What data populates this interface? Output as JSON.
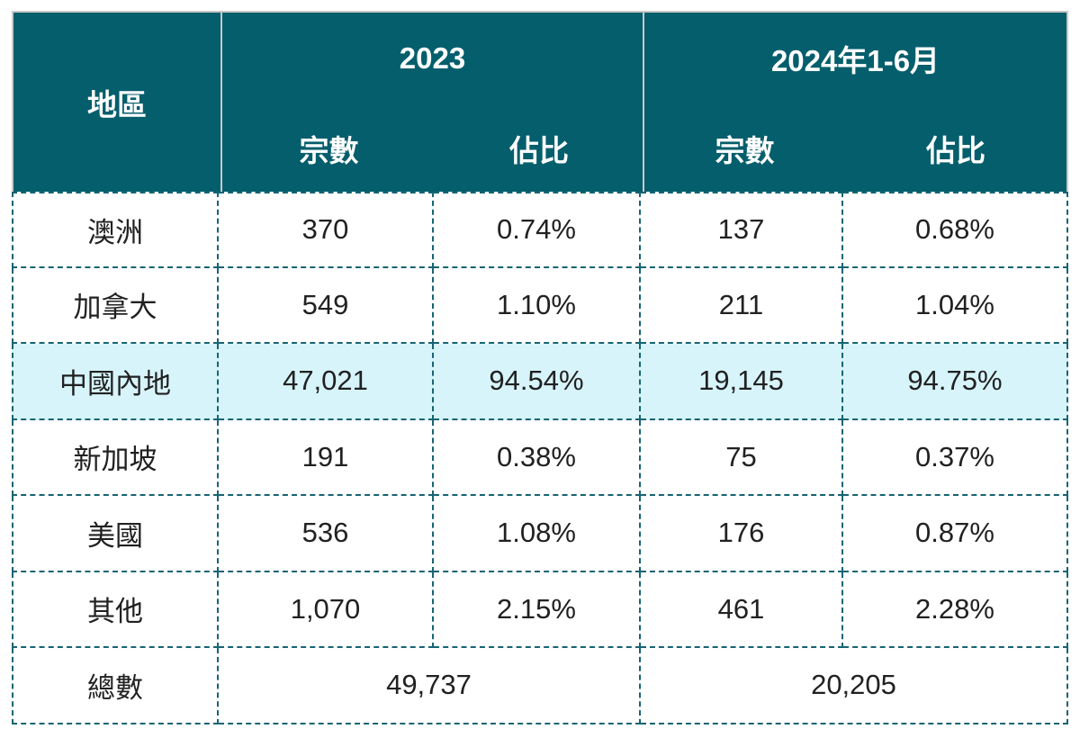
{
  "colors": {
    "header_bg": "#055e6c",
    "header_text": "#ffffff",
    "header_separator": "#c9c9c9",
    "body_border_dashed": "#176473",
    "body_text": "#212121",
    "highlight_row_bg": "#d7f4fb"
  },
  "table": {
    "header": {
      "region": "地區",
      "groups": [
        {
          "label": "2023",
          "subcols": [
            "宗數",
            "佔比"
          ]
        },
        {
          "label": "2024年1-6月",
          "subcols": [
            "宗數",
            "佔比"
          ]
        }
      ]
    },
    "rows": [
      {
        "region": "澳洲",
        "count_2023": "370",
        "share_2023": "0.74%",
        "count_2024": "137",
        "share_2024": "0.68%"
      },
      {
        "region": "加拿大",
        "count_2023": "549",
        "share_2023": "1.10%",
        "count_2024": "211",
        "share_2024": "1.04%"
      },
      {
        "region": "中國內地",
        "count_2023": "47,021",
        "share_2023": "94.54%",
        "count_2024": "19,145",
        "share_2024": "94.75%"
      },
      {
        "region": "新加坡",
        "count_2023": "191",
        "share_2023": "0.38%",
        "count_2024": "75",
        "share_2024": "0.37%"
      },
      {
        "region": "美國",
        "count_2023": "536",
        "share_2023": "1.08%",
        "count_2024": "176",
        "share_2024": "0.87%"
      },
      {
        "region": "其他",
        "count_2023": "1,070",
        "share_2023": "2.15%",
        "count_2024": "461",
        "share_2024": "2.28%"
      }
    ],
    "total": {
      "label": "總數",
      "value_2023": "49,737",
      "value_2024": "20,205"
    }
  },
  "chart_data": {
    "type": "table",
    "columns": [
      "地區",
      "2023 宗數",
      "2023 佔比",
      "2024年1-6月 宗數",
      "2024年1-6月 佔比"
    ],
    "rows": [
      [
        "澳洲",
        370,
        "0.74%",
        137,
        "0.68%"
      ],
      [
        "加拿大",
        549,
        "1.10%",
        211,
        "1.04%"
      ],
      [
        "中國內地",
        47021,
        "94.54%",
        19145,
        "94.75%"
      ],
      [
        "新加坡",
        191,
        "0.38%",
        75,
        "0.37%"
      ],
      [
        "美國",
        536,
        "1.08%",
        176,
        "0.87%"
      ],
      [
        "其他",
        1070,
        "2.15%",
        461,
        "2.28%"
      ],
      [
        "總數",
        49737,
        "",
        20205,
        ""
      ]
    ],
    "highlighted_row": "中國內地",
    "notes": "總數 row: 49,737 spans the two 2023 columns; 20,205 spans the two 2024年1-6月 columns"
  }
}
